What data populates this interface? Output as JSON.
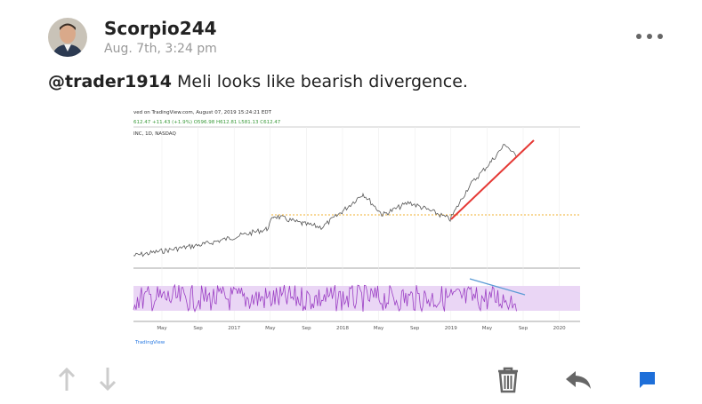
{
  "post": {
    "author": "Scorpio244",
    "timestamp": "Aug. 7th, 3:24 pm",
    "mention": "@trader1914",
    "text": "Meli looks like bearish divergence.",
    "image": {
      "header": "ved on TradingView.com, August 07, 2019 15:24:21 EDT",
      "legend": "INC, 1D, NASDAQ",
      "quote": "612.47 +11.43 (+1.9%) O596.98 H612.81 L581.13 C612.47",
      "x_labels": [
        "May",
        "Sep",
        "2017",
        "May",
        "Sep",
        "2018",
        "May",
        "Sep",
        "2019",
        "May",
        "Sep",
        "2020"
      ],
      "source": "TradingView"
    }
  }
}
